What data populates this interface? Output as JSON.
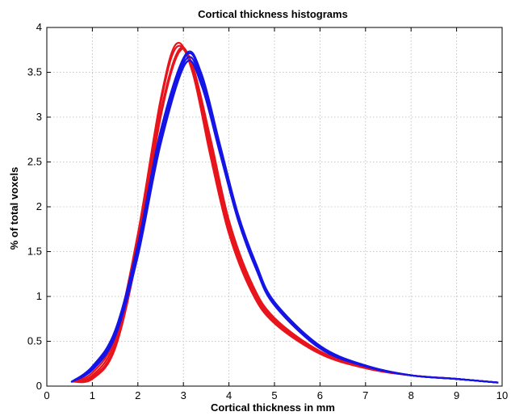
{
  "chart_data": {
    "type": "line",
    "title": "Cortical thickness histograms",
    "xlabel": "Cortical thickness in mm",
    "ylabel": "% of total voxels",
    "xlim": [
      0,
      10
    ],
    "ylim": [
      0,
      4
    ],
    "xticks": [
      "0",
      "1",
      "2",
      "3",
      "4",
      "5",
      "6",
      "7",
      "8",
      "9",
      "10"
    ],
    "yticks": [
      "0",
      "0.5",
      "1",
      "1.5",
      "2",
      "2.5",
      "3",
      "3.5",
      "4"
    ],
    "grid": true,
    "colors": {
      "group_a": "#e8141c",
      "group_b": "#1414e6",
      "grid": "#b8b8b8",
      "frame": "#000000"
    },
    "series": [
      {
        "color": "#e8141c",
        "x": [
          0.55,
          1.0,
          1.5,
          2.0,
          2.5,
          2.85,
          3.2,
          3.6,
          4.0,
          4.5,
          5.0,
          6.0,
          7.0,
          8.0,
          9.0,
          9.9
        ],
        "y": [
          0.05,
          0.15,
          0.55,
          1.7,
          3.2,
          3.82,
          3.5,
          2.55,
          1.7,
          1.05,
          0.7,
          0.36,
          0.2,
          0.12,
          0.08,
          0.04
        ]
      },
      {
        "color": "#e8141c",
        "x": [
          0.55,
          1.0,
          1.5,
          2.0,
          2.5,
          2.85,
          3.2,
          3.6,
          4.0,
          4.5,
          5.0,
          6.0,
          7.0,
          8.0,
          9.0,
          9.9
        ],
        "y": [
          0.05,
          0.12,
          0.5,
          1.62,
          3.15,
          3.78,
          3.52,
          2.62,
          1.75,
          1.08,
          0.72,
          0.37,
          0.2,
          0.12,
          0.08,
          0.04
        ]
      },
      {
        "color": "#e8141c",
        "x": [
          0.55,
          1.0,
          1.5,
          2.0,
          2.5,
          2.9,
          3.2,
          3.6,
          4.0,
          4.5,
          5.0,
          6.0,
          7.0,
          8.0,
          9.0,
          9.9
        ],
        "y": [
          0.05,
          0.1,
          0.45,
          1.55,
          3.05,
          3.75,
          3.55,
          2.68,
          1.8,
          1.12,
          0.74,
          0.38,
          0.21,
          0.12,
          0.08,
          0.04
        ]
      },
      {
        "color": "#e8141c",
        "x": [
          0.55,
          1.0,
          1.5,
          2.0,
          2.5,
          2.9,
          3.2,
          3.6,
          4.0,
          4.5,
          5.0,
          6.0,
          7.0,
          8.0,
          9.0,
          9.9
        ],
        "y": [
          0.05,
          0.08,
          0.42,
          1.5,
          3.0,
          3.72,
          3.58,
          2.75,
          1.85,
          1.15,
          0.76,
          0.39,
          0.21,
          0.12,
          0.08,
          0.04
        ]
      },
      {
        "color": "#1414e6",
        "x": [
          0.55,
          1.0,
          1.5,
          2.0,
          2.5,
          3.05,
          3.4,
          3.8,
          4.2,
          4.6,
          5.0,
          6.0,
          7.0,
          8.0,
          9.0,
          9.9
        ],
        "y": [
          0.05,
          0.18,
          0.55,
          1.45,
          2.7,
          3.6,
          3.35,
          2.6,
          1.85,
          1.3,
          0.9,
          0.42,
          0.22,
          0.12,
          0.08,
          0.04
        ]
      },
      {
        "color": "#1414e6",
        "x": [
          0.55,
          1.0,
          1.5,
          2.0,
          2.5,
          3.05,
          3.4,
          3.8,
          4.2,
          4.6,
          5.0,
          6.0,
          7.0,
          8.0,
          9.0,
          9.9
        ],
        "y": [
          0.05,
          0.2,
          0.58,
          1.5,
          2.75,
          3.64,
          3.4,
          2.62,
          1.87,
          1.32,
          0.92,
          0.43,
          0.22,
          0.12,
          0.08,
          0.04
        ]
      },
      {
        "color": "#1414e6",
        "x": [
          0.55,
          1.0,
          1.5,
          2.0,
          2.5,
          3.05,
          3.4,
          3.8,
          4.2,
          4.6,
          5.0,
          6.0,
          7.0,
          8.0,
          9.0,
          9.9
        ],
        "y": [
          0.05,
          0.21,
          0.6,
          1.55,
          2.8,
          3.68,
          3.45,
          2.66,
          1.9,
          1.34,
          0.93,
          0.44,
          0.23,
          0.12,
          0.08,
          0.04
        ]
      },
      {
        "color": "#1414e6",
        "x": [
          0.55,
          1.0,
          1.5,
          2.0,
          2.5,
          3.05,
          3.4,
          3.8,
          4.2,
          4.6,
          5.0,
          6.0,
          7.0,
          8.0,
          9.0,
          9.9
        ],
        "y": [
          0.05,
          0.22,
          0.62,
          1.58,
          2.85,
          3.7,
          3.48,
          2.7,
          1.92,
          1.36,
          0.94,
          0.45,
          0.23,
          0.12,
          0.08,
          0.04
        ]
      }
    ]
  }
}
